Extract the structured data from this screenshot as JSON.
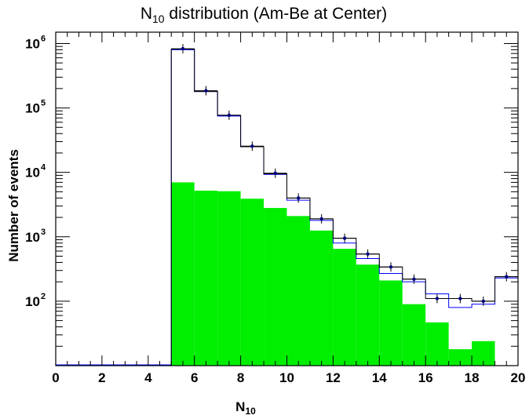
{
  "chart_data": {
    "type": "bar",
    "title": "N10 distribution (Am-Be at Center)",
    "title_parts": {
      "main": "N",
      "sub": "10",
      "rest": " distribution (Am-Be at Center)"
    },
    "xlabel_parts": {
      "main": "N",
      "sub": "10"
    },
    "ylabel": "Number of events",
    "x_range": [
      0,
      20
    ],
    "y_range": [
      10,
      1500000
    ],
    "y_scale": "log",
    "grid": false,
    "x_ticks": [
      "0",
      "2",
      "4",
      "6",
      "8",
      "10",
      "12",
      "14",
      "16",
      "18",
      "20"
    ],
    "y_ticks": [
      {
        "base": "10",
        "exp": "2",
        "value": 100
      },
      {
        "base": "10",
        "exp": "3",
        "value": 1000
      },
      {
        "base": "10",
        "exp": "4",
        "value": 10000
      },
      {
        "base": "10",
        "exp": "5",
        "value": 100000
      },
      {
        "base": "10",
        "exp": "6",
        "value": 1000000
      }
    ],
    "bins": {
      "edges": [
        5,
        6,
        7,
        8,
        9,
        10,
        11,
        12,
        13,
        14,
        15,
        16,
        17,
        18,
        19,
        20
      ]
    },
    "series": [
      {
        "style": "filled",
        "color": "#00ee00",
        "values": [
          7000,
          5200,
          5100,
          3900,
          2800,
          2100,
          1250,
          650,
          370,
          210,
          90,
          47,
          18,
          24,
          0
        ]
      },
      {
        "style": "outline",
        "color": "#0000ff",
        "values": [
          800000,
          180000,
          75000,
          25000,
          9300,
          3700,
          1800,
          800,
          460,
          270,
          200,
          130,
          80,
          90,
          230
        ]
      },
      {
        "style": "outline",
        "color": "#000000",
        "values": [
          820000,
          180000,
          77000,
          25000,
          9500,
          4000,
          1900,
          950,
          540,
          340,
          220,
          110,
          110,
          100,
          240
        ]
      },
      {
        "style": "points",
        "color": "#000080",
        "values": [
          830000,
          185000,
          77000,
          25500,
          9700,
          4000,
          1900,
          950,
          540,
          340,
          220,
          110,
          110,
          100,
          240
        ],
        "errors": [
          900,
          430,
          280,
          160,
          100,
          65,
          45,
          31,
          25,
          20,
          15,
          11,
          11,
          10,
          16
        ]
      }
    ]
  }
}
